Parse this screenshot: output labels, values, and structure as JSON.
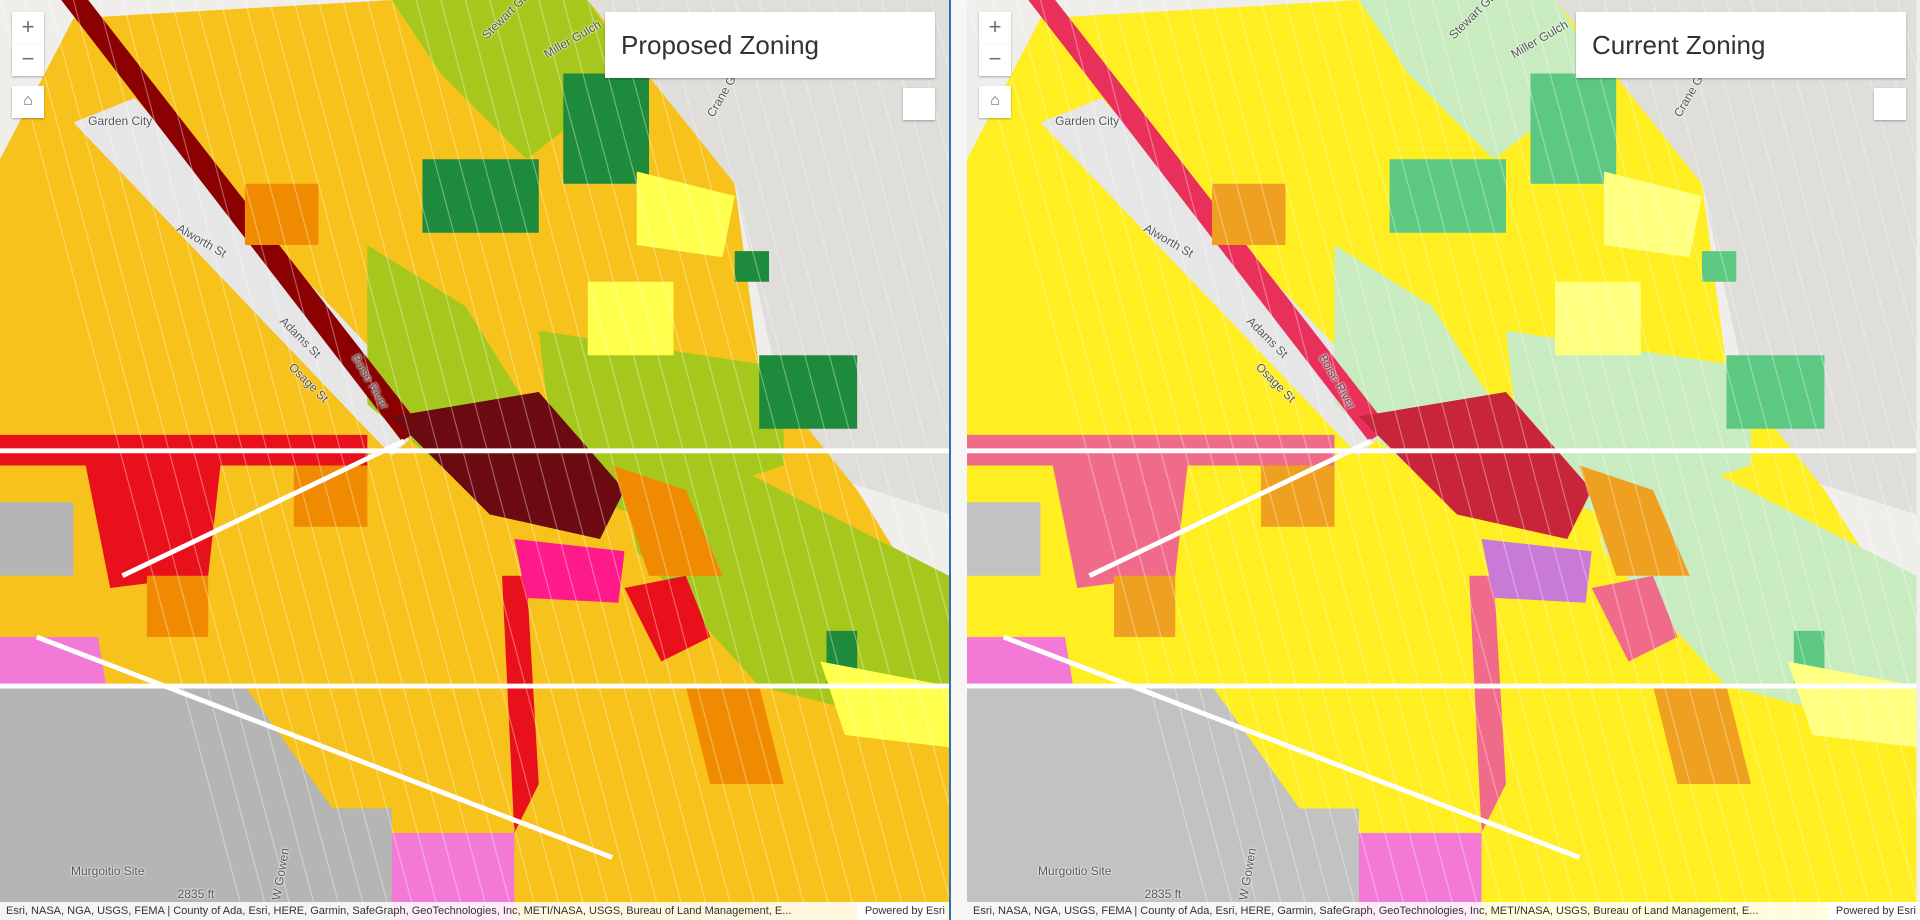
{
  "panels": [
    {
      "title": "Proposed Zoning",
      "zoom_in": "+",
      "zoom_out": "−",
      "labels": [
        "Garden City",
        "Alworth St",
        "Adams St",
        "Osage St",
        "Boise River",
        "Miller Gulch",
        "Stewart Gulch",
        "Crane Gulch",
        "Murgoitio Site",
        "2835 ft",
        "W Gowen"
      ],
      "attribution": "Esri, NASA, NGA, USGS, FEMA | County of Ada, Esri, HERE, Garmin, SafeGraph, GeoTechnologies, Inc, METI/NASA, USGS, Bureau of Land Management, E...",
      "powered_by": "Powered by Esri"
    },
    {
      "title": "Current Zoning",
      "zoom_in": "+",
      "zoom_out": "−",
      "labels": [
        "Garden City",
        "Alworth St",
        "Adams St",
        "Osage St",
        "Boise River",
        "Miller Gulch",
        "Stewart Gulch",
        "Crane Gulch",
        "Murgoitio Site",
        "2835 ft",
        "W Gowen"
      ],
      "attribution": "Esri, NASA, NGA, USGS, FEMA | County of Ada, Esri, HERE, Garmin, SafeGraph, GeoTechnologies, Inc, METI/NASA, USGS, Bureau of Land Management, E...",
      "powered_by": "Powered by Esri"
    }
  ]
}
